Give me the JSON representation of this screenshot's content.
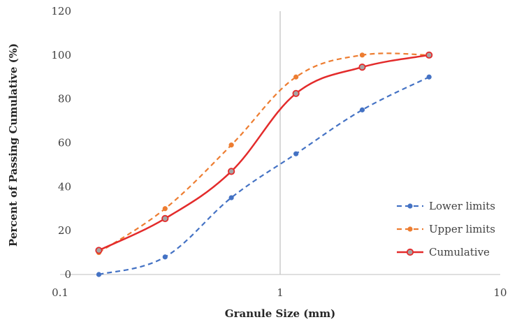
{
  "chart_data": {
    "type": "line",
    "title": "",
    "xlabel": "Granule Size (mm)",
    "ylabel": "Percent of Passing Cumulative (%)",
    "xscale": "log",
    "xlim": [
      0.1,
      10
    ],
    "ylim": [
      0,
      120
    ],
    "xticks": [
      "0.1",
      "1",
      "10"
    ],
    "yticks": [
      "0",
      "20",
      "40",
      "60",
      "80",
      "100",
      "120"
    ],
    "grid": false,
    "reference_line_x": 1,
    "legend_position": "bottom-right",
    "x": [
      0.15,
      0.3,
      0.6,
      1.18,
      2.36,
      4.75
    ],
    "series": [
      {
        "name": "Lower limits",
        "style": "dashed",
        "color": "#4472C4",
        "marker_fill": "#4472C4",
        "values": [
          0,
          8,
          35,
          55,
          75,
          90
        ]
      },
      {
        "name": "Upper limits",
        "style": "dashed",
        "color": "#ED7D31",
        "marker_fill": "#ED7D31",
        "values": [
          10,
          30,
          59,
          90,
          100,
          100
        ]
      },
      {
        "name": "Cumulative",
        "style": "solid",
        "color": "#E32B2B",
        "marker_fill": "#A5A5A5",
        "values": [
          11,
          25.5,
          47,
          82.5,
          94.5,
          100
        ]
      }
    ]
  }
}
